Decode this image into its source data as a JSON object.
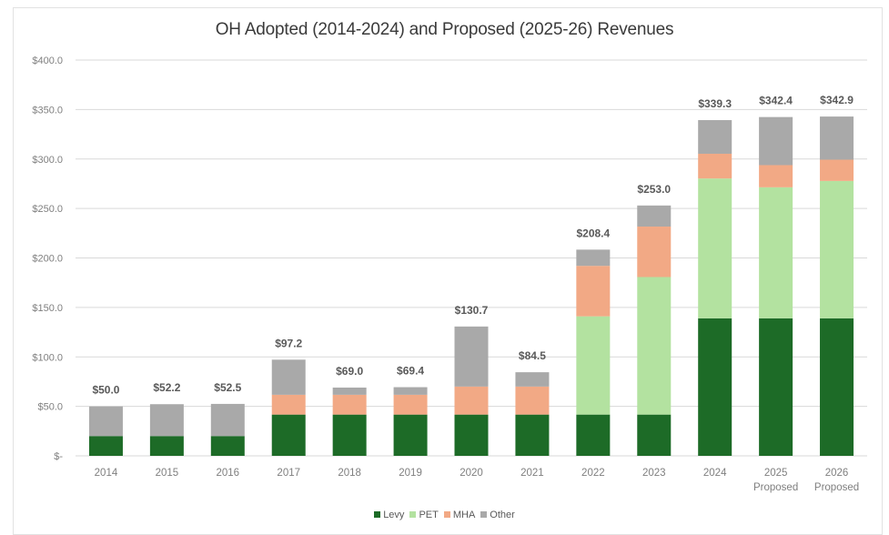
{
  "chart_data": {
    "type": "bar",
    "stacked": true,
    "title": "OH Adopted (2014-2024) and Proposed (2025-26) Revenues",
    "xlabel": "",
    "ylabel": "",
    "ylim": [
      0,
      400
    ],
    "yticks": [
      0,
      50,
      100,
      150,
      200,
      250,
      300,
      350,
      400
    ],
    "ytick_labels": [
      "$-",
      "$50.0",
      "$100.0",
      "$150.0",
      "$200.0",
      "$250.0",
      "$300.0",
      "$350.0",
      "$400.0"
    ],
    "grid": true,
    "legend_position": "bottom",
    "categories": [
      [
        "2014"
      ],
      [
        "2015"
      ],
      [
        "2016"
      ],
      [
        "2017"
      ],
      [
        "2018"
      ],
      [
        "2019"
      ],
      [
        "2020"
      ],
      [
        "2021"
      ],
      [
        "2022"
      ],
      [
        "2023"
      ],
      [
        "2024"
      ],
      [
        "2025",
        "Proposed"
      ],
      [
        "2026",
        "Proposed"
      ]
    ],
    "series": [
      {
        "name": "Levy",
        "color": "#1d6b27",
        "values": [
          20.0,
          20.0,
          20.0,
          41.7,
          41.7,
          41.7,
          41.7,
          41.7,
          41.7,
          41.7,
          139.0,
          139.0,
          139.0
        ]
      },
      {
        "name": "PET",
        "color": "#b3e2a0",
        "values": [
          0,
          0,
          0,
          0,
          0,
          0,
          0,
          0,
          99.3,
          139.0,
          141.3,
          132.4,
          138.8
        ]
      },
      {
        "name": "MHA",
        "color": "#f2a985",
        "values": [
          0,
          0,
          0,
          20.0,
          20.0,
          20.0,
          28.3,
          28.3,
          51.0,
          51.0,
          25.0,
          22.4,
          21.5
        ]
      },
      {
        "name": "Other",
        "color": "#a9a9a9",
        "values": [
          30.0,
          32.2,
          32.5,
          35.5,
          7.3,
          7.7,
          60.7,
          14.5,
          16.4,
          21.3,
          34.0,
          48.6,
          43.6
        ]
      }
    ],
    "totals": [
      50.0,
      52.2,
      52.5,
      97.2,
      69.0,
      69.4,
      130.7,
      84.5,
      208.4,
      253.0,
      339.3,
      342.4,
      342.9
    ],
    "total_labels": [
      "$50.0",
      "$52.2",
      "$52.5",
      "$97.2",
      "$69.0",
      "$69.4",
      "$130.7",
      "$84.5",
      "$208.4",
      "$253.0",
      "$339.3",
      "$342.4",
      "$342.9"
    ]
  }
}
